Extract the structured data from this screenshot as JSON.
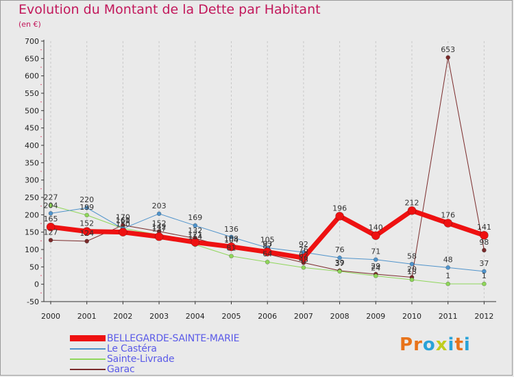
{
  "header": {
    "title": "Evolution du Montant de la Dette par Habitant",
    "subtitle": "(en €)"
  },
  "logo": {
    "text": "Proxiti",
    "letter_colors": [
      "#e8731a",
      "#e8731a",
      "#29a3d8",
      "#c0cd1e",
      "#29a3d8",
      "#e8731a",
      "#29a3d8"
    ]
  },
  "chart_data": {
    "type": "line",
    "title": "Evolution du Montant de la Dette par Habitant",
    "subtitle": "(en €)",
    "xlabel": "",
    "ylabel": "",
    "x": [
      "2000",
      "2001",
      "2002",
      "2003",
      "2004",
      "2005",
      "2006",
      "2007",
      "2008",
      "2009",
      "2010",
      "2011",
      "2012"
    ],
    "ylim": [
      -50,
      700
    ],
    "yticks": [
      -50,
      0,
      50,
      100,
      150,
      200,
      250,
      300,
      350,
      400,
      450,
      500,
      550,
      600,
      650,
      700
    ],
    "grid": "vertical",
    "legend_position": "bottom-left",
    "series": [
      {
        "name": "BELLEGARDE-SAINTE-MARIE",
        "color": "#ee1111",
        "values": [
          165,
          152,
          150,
          137,
          121,
          108,
          93,
          76,
          196,
          140,
          212,
          176,
          141
        ],
        "labels": [
          "165",
          "152",
          "150",
          "137",
          "121",
          "108",
          "93",
          "76",
          "196",
          "140",
          "212",
          "176",
          "141"
        ]
      },
      {
        "name": "Le Castéra",
        "color": "#4f93cb",
        "values": [
          204,
          220,
          160,
          203,
          169,
          136,
          105,
          92,
          76,
          71,
          58,
          48,
          37
        ],
        "labels": [
          "204",
          "220",
          "160",
          "203",
          "169",
          "136",
          "105",
          "92",
          "76",
          "71",
          "58",
          "48",
          "37"
        ]
      },
      {
        "name": "Sainte-Livrade",
        "color": "#8fd65a",
        "values": [
          227,
          199,
          161,
          142,
          114,
          81,
          64,
          48,
          37,
          24,
          13,
          1,
          1
        ],
        "labels": [
          "227",
          "199",
          "161",
          "142",
          "114",
          "81",
          "64",
          "48",
          "37",
          "24",
          "13",
          "1",
          "1"
        ]
      },
      {
        "name": "Garac",
        "color": "#7a2a2a",
        "values": [
          127,
          124,
          170,
          152,
          132,
          104,
          87,
          62,
          39,
          29,
          20,
          653,
          98
        ],
        "labels": [
          "127",
          "124",
          "170",
          "152",
          "132",
          "104",
          "87",
          "62",
          "39",
          "29",
          "20",
          "653",
          "98"
        ]
      }
    ]
  }
}
